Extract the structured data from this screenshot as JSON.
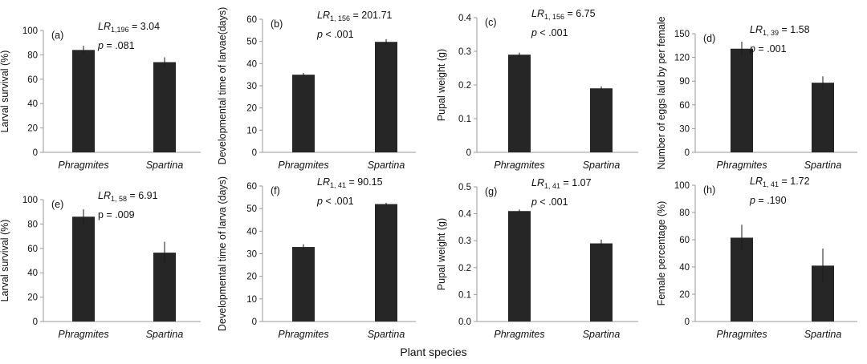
{
  "figure": {
    "x_axis_title": "Plant species"
  },
  "chart_data": [
    {
      "type": "bar",
      "panel_label": "(a)",
      "categories": [
        "Phragmites",
        "Spartina"
      ],
      "values": [
        84,
        74
      ],
      "errors": [
        3.5,
        4
      ],
      "ylabel": "Larval survival (%)",
      "ylim": [
        0,
        100
      ],
      "yticks": [
        "0",
        "20",
        "40",
        "60",
        "80",
        "100"
      ],
      "stat_lr_sub": "1,196",
      "stat_lr_value": " = 3.04",
      "stat_p_value": " = .081"
    },
    {
      "type": "bar",
      "panel_label": "(b)",
      "categories": [
        "Phragmites",
        "Spartina"
      ],
      "values": [
        35,
        49.8
      ],
      "errors": [
        0.8,
        1.2
      ],
      "ylabel": "Developmental time of larvae(days)",
      "ylim": [
        0,
        60
      ],
      "yticks": [
        "0",
        "10",
        "20",
        "30",
        "40",
        "50",
        "60"
      ],
      "stat_lr_sub": "1, 156",
      "stat_lr_value": " = 201.71",
      "stat_p_value": " < .001"
    },
    {
      "type": "bar",
      "panel_label": "(c)",
      "categories": [
        "Phragmites",
        "Spartina"
      ],
      "values": [
        0.29,
        0.19
      ],
      "errors": [
        0.006,
        0.006
      ],
      "ylabel": "Pupal weight (g)",
      "ylim": [
        0,
        0.4
      ],
      "yticks": [
        "0",
        "0.1",
        "0.2",
        "0.3",
        "0.4"
      ],
      "stat_lr_sub": "1, 156",
      "stat_lr_value": " = 6.75",
      "stat_p_value": " < .001"
    },
    {
      "type": "bar",
      "panel_label": "(d)",
      "categories": [
        "Phragmites",
        "Spartina"
      ],
      "values": [
        131,
        88
      ],
      "errors": [
        9,
        8
      ],
      "ylabel": "Number of eggs laid by per female",
      "ylim": [
        0,
        150
      ],
      "yticks": [
        "0",
        "30",
        "60",
        "90",
        "120",
        "150"
      ],
      "stat_lr_sub": "1, 39",
      "stat_lr_value": " = 1.58",
      "stat_p_value": " = .001"
    },
    {
      "type": "bar",
      "panel_label": "(e)",
      "categories": [
        "Phragmites",
        "Spartina"
      ],
      "values": [
        86,
        56.5
      ],
      "errors": [
        6,
        9
      ],
      "ylabel": "Larval survival (%)",
      "ylim": [
        0,
        100
      ],
      "yticks": [
        "0",
        "20",
        "40",
        "60",
        "80",
        "100"
      ],
      "stat_lr_sub": "1, 58",
      "stat_lr_value": " = 6.91",
      "stat_p_label": "p",
      "stat_p_value": " = .009"
    },
    {
      "type": "bar",
      "panel_label": "(f)",
      "categories": [
        "Phragmites",
        "Spartina"
      ],
      "values": [
        33,
        52
      ],
      "errors": [
        1.2,
        0.6
      ],
      "ylabel": "Developmental time of larva (days)",
      "ylim": [
        0,
        60
      ],
      "yticks": [
        "0",
        "10",
        "20",
        "30",
        "40",
        "50",
        "60"
      ],
      "stat_lr_sub": "1, 41",
      "stat_lr_value": " = 90.15",
      "stat_p_value": " < .001"
    },
    {
      "type": "bar",
      "panel_label": "(g)",
      "categories": [
        "Phragmites",
        "Spartina"
      ],
      "values": [
        0.41,
        0.29
      ],
      "errors": [
        0.006,
        0.014
      ],
      "ylabel": "Pupal weight (g)",
      "ylim": [
        0,
        0.5
      ],
      "yticks": [
        "0.0",
        "0.1",
        "0.2",
        "0.3",
        "0.4",
        "0.5"
      ],
      "stat_lr_sub": "1, 41",
      "stat_lr_value": " = 1.07",
      "stat_p_value": " < .001"
    },
    {
      "type": "bar",
      "panel_label": "(h)",
      "categories": [
        "Phragmites",
        "Spartina"
      ],
      "values": [
        61.5,
        41
      ],
      "errors": [
        9.5,
        12.5
      ],
      "ylabel": "Female percentage (%)",
      "ylim": [
        0,
        100
      ],
      "yticks": [
        "0",
        "20",
        "40",
        "60",
        "80",
        "100"
      ],
      "stat_lr_sub": "1, 41",
      "stat_lr_value": " = 1.72",
      "stat_p_value": " = .190"
    }
  ],
  "colors": {
    "bar": "#262626",
    "axis": "#9a9a9a",
    "error_bar": "#1a1a1a"
  }
}
